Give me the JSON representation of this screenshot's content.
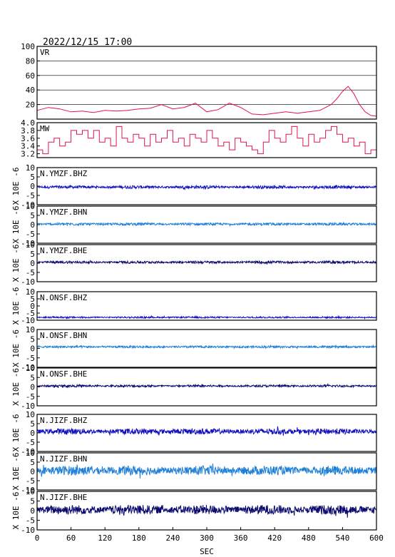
{
  "header": {
    "datetime": "2022/12/15 17:00"
  },
  "chart_data": {
    "type": "line",
    "xlabel": "SEC",
    "xlim": [
      0,
      600
    ],
    "xticks": [
      "0",
      "60",
      "120",
      "180",
      "240",
      "300",
      "360",
      "420",
      "480",
      "540",
      "600"
    ],
    "panels": [
      {
        "name": "VR",
        "ylim": [
          0,
          100
        ],
        "yticks": [
          "20",
          "40",
          "60",
          "80",
          "100"
        ],
        "grid": true,
        "color": "#e0144c",
        "x": [
          0,
          20,
          40,
          60,
          80,
          100,
          120,
          140,
          160,
          180,
          200,
          220,
          240,
          260,
          280,
          300,
          320,
          340,
          360,
          380,
          400,
          420,
          440,
          460,
          480,
          500,
          520,
          530,
          540,
          550,
          560,
          570,
          580,
          590,
          600
        ],
        "values": [
          12,
          16,
          14,
          10,
          11,
          9,
          12,
          11,
          12,
          14,
          15,
          20,
          14,
          16,
          22,
          10,
          13,
          22,
          16,
          7,
          6,
          8,
          10,
          8,
          10,
          12,
          20,
          28,
          38,
          45,
          35,
          20,
          10,
          5,
          4
        ]
      },
      {
        "name": "MW",
        "ylim": [
          3.1,
          4.0
        ],
        "yticks": [
          "3.2",
          "3.4",
          "3.6",
          "3.8",
          "4.0"
        ],
        "color": "#e0144c",
        "x": [
          0,
          10,
          20,
          30,
          40,
          50,
          60,
          70,
          80,
          90,
          100,
          110,
          120,
          130,
          140,
          150,
          160,
          170,
          180,
          190,
          200,
          210,
          220,
          230,
          240,
          250,
          260,
          270,
          280,
          290,
          300,
          310,
          320,
          330,
          340,
          350,
          360,
          370,
          380,
          390,
          400,
          410,
          420,
          430,
          440,
          450,
          460,
          470,
          480,
          490,
          500,
          510,
          520,
          530,
          540,
          550,
          560,
          570,
          580,
          590,
          600
        ],
        "values": [
          3.3,
          3.2,
          3.5,
          3.6,
          3.4,
          3.5,
          3.8,
          3.7,
          3.8,
          3.6,
          3.8,
          3.5,
          3.6,
          3.4,
          3.9,
          3.6,
          3.5,
          3.7,
          3.6,
          3.4,
          3.7,
          3.5,
          3.6,
          3.8,
          3.5,
          3.6,
          3.4,
          3.7,
          3.6,
          3.5,
          3.8,
          3.6,
          3.4,
          3.5,
          3.3,
          3.6,
          3.5,
          3.4,
          3.3,
          3.2,
          3.5,
          3.8,
          3.6,
          3.5,
          3.7,
          3.9,
          3.6,
          3.4,
          3.7,
          3.5,
          3.6,
          3.8,
          3.9,
          3.7,
          3.5,
          3.6,
          3.4,
          3.5,
          3.2,
          3.3,
          3.2
        ]
      },
      {
        "name": "N.YMZF.BHZ",
        "ylim": [
          -10,
          10
        ],
        "yticks": [
          "-10",
          "-5",
          "0",
          "5",
          "10"
        ],
        "color": "#1010c0",
        "offset": -0.5,
        "amplitude": 0.8
      },
      {
        "name": "N.YMZF.BHN",
        "ylim": [
          -10,
          10
        ],
        "yticks": [
          "-10",
          "-5",
          "0",
          "5",
          "10"
        ],
        "color": "#1e7fd8",
        "offset": 0.3,
        "amplitude": 0.7
      },
      {
        "name": "N.YMZF.BHE",
        "ylim": [
          -10,
          10
        ],
        "yticks": [
          "-10",
          "-5",
          "0",
          "5",
          "10"
        ],
        "color": "#0a0a6e",
        "offset": 0.5,
        "amplitude": 0.7
      },
      {
        "name": "N.ONSF.BHZ",
        "ylim": [
          -10,
          10
        ],
        "yticks": [
          "-10",
          "-5",
          "0",
          "5",
          "10"
        ],
        "color": "#1010c0",
        "offset": -8.0,
        "amplitude": 0.6
      },
      {
        "name": "N.ONSF.BHN",
        "ylim": [
          -10,
          10
        ],
        "yticks": [
          "-10",
          "-5",
          "0",
          "5",
          "10"
        ],
        "color": "#1e7fd8",
        "offset": 0.8,
        "amplitude": 0.6
      },
      {
        "name": "N.ONSF.BHE",
        "ylim": [
          -10,
          10
        ],
        "yticks": [
          "-10",
          "-5",
          "0",
          "5",
          "10"
        ],
        "color": "#0a0a6e",
        "offset": 0.5,
        "amplitude": 0.6
      },
      {
        "name": "N.JIZF.BHZ",
        "ylim": [
          -10,
          10
        ],
        "yticks": [
          "-10",
          "-5",
          "0",
          "5",
          "10"
        ],
        "color": "#1010c0",
        "offset": 0.8,
        "amplitude": 1.6
      },
      {
        "name": "N.JIZF.BHN",
        "ylim": [
          -10,
          10
        ],
        "yticks": [
          "-10",
          "-5",
          "0",
          "5",
          "10"
        ],
        "color": "#1e7fd8",
        "offset": 0.5,
        "amplitude": 2.5
      },
      {
        "name": "N.JIZF.BHE",
        "ylim": [
          -10,
          10
        ],
        "yticks": [
          "-10",
          "-5",
          "0",
          "5",
          "10"
        ],
        "color": "#0a0a6e",
        "offset": 0.5,
        "amplitude": 2.5
      }
    ],
    "yaxis_label": "X 10E -6",
    "yaxis_label_repeats": 9
  }
}
